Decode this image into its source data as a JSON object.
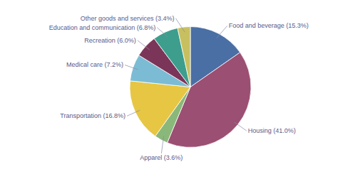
{
  "chart_data": {
    "type": "pie",
    "categories": [
      "Food and beverage (15.3%)",
      "Housing (41.0%)",
      "Apparel (3.6%)",
      "Transportation (16.8%)",
      "Medical care (7.2%)",
      "Recreation (6.0%)",
      "Education and communication (6.8%)",
      "Other goods and services (3.4%)"
    ],
    "values": [
      15.3,
      41.0,
      3.6,
      16.8,
      7.2,
      6.0,
      6.8,
      3.4
    ],
    "colors": [
      "#4a6fa5",
      "#9b4f72",
      "#8ab87a",
      "#e6c643",
      "#7bbcd4",
      "#7b3558",
      "#3d9e8e",
      "#c8c060"
    ]
  }
}
